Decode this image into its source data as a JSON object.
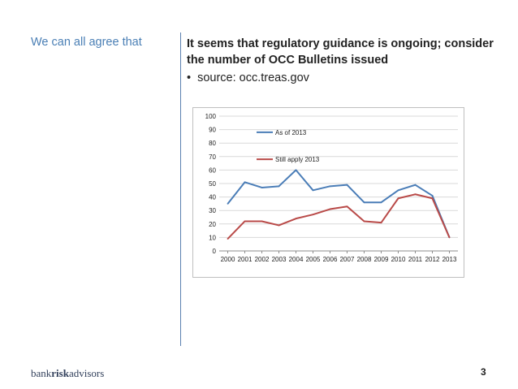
{
  "slide": {
    "left_heading": "We can all agree that",
    "headline": "It seems that regulatory guidance is ongoing; consider the number of OCC Bulletins issued",
    "bullet_marker": "•",
    "bullet": "source: occ.treas.gov",
    "footer_logo_part1": "bank",
    "footer_logo_part2": "risk",
    "footer_logo_part3": "advisors",
    "page_number": "3"
  },
  "colors": {
    "series1": "#4a7db7",
    "series2": "#b94a48",
    "grid": "#d9d9d9",
    "axis": "#8c8c8c"
  },
  "chart_data": {
    "type": "line",
    "title": "",
    "xlabel": "",
    "ylabel": "",
    "x": [
      "2000",
      "2001",
      "2002",
      "2003",
      "2004",
      "2005",
      "2006",
      "2007",
      "2008",
      "2009",
      "2010",
      "2011",
      "2012",
      "2013"
    ],
    "ylim": [
      0,
      100
    ],
    "yticks": [
      0,
      10,
      20,
      30,
      40,
      50,
      60,
      70,
      80,
      90,
      100
    ],
    "yticks_labels": [
      "0",
      "10",
      "20",
      "30",
      "40",
      "50",
      "60",
      "70",
      "80",
      "90",
      "100"
    ],
    "grid": true,
    "legend": "top-left inside",
    "series": [
      {
        "name": "As of 2013",
        "values": [
          35,
          51,
          47,
          48,
          60,
          45,
          48,
          49,
          36,
          36,
          45,
          49,
          41,
          10
        ]
      },
      {
        "name": "Still apply 2013",
        "values": [
          9,
          22,
          22,
          19,
          24,
          27,
          31,
          33,
          22,
          21,
          39,
          42,
          39,
          10
        ]
      }
    ]
  }
}
